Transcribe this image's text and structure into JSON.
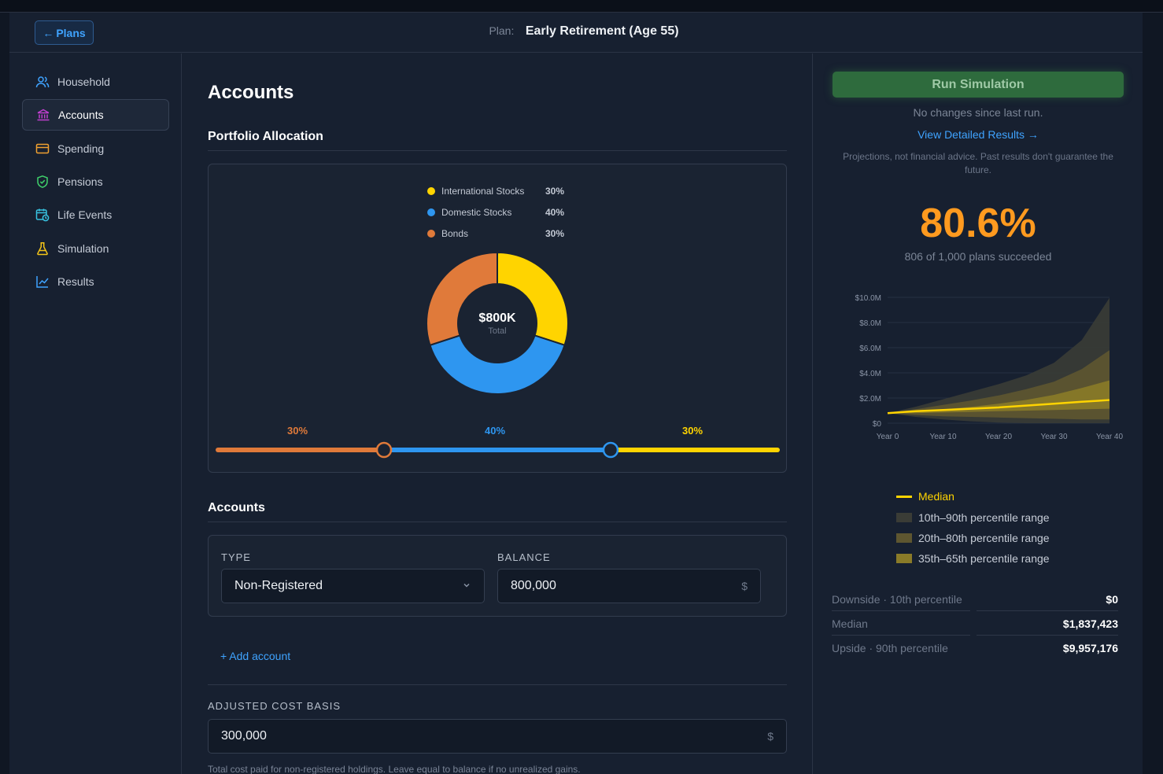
{
  "header": {
    "back_label": "Plans",
    "plan_label": "Plan:",
    "plan_name": "Early Retirement (Age 55)"
  },
  "sidebar": {
    "items": [
      {
        "label": "Household",
        "icon": "users-icon",
        "color": "#3fa3ff",
        "active": false
      },
      {
        "label": "Accounts",
        "icon": "bank-icon",
        "color": "#c23fd1",
        "active": true
      },
      {
        "label": "Spending",
        "icon": "credit-card-icon",
        "color": "#f0a030",
        "active": false
      },
      {
        "label": "Pensions",
        "icon": "shield-check-icon",
        "color": "#3fcf6a",
        "active": false
      },
      {
        "label": "Life Events",
        "icon": "calendar-clock-icon",
        "color": "#38c2e0",
        "active": false
      },
      {
        "label": "Simulation",
        "icon": "flask-icon",
        "color": "#f5c518",
        "active": false
      },
      {
        "label": "Results",
        "icon": "line-chart-icon",
        "color": "#3fa3ff",
        "active": false
      }
    ]
  },
  "main": {
    "title": "Accounts",
    "allocation_title": "Portfolio Allocation",
    "allocation": [
      {
        "name": "International Stocks",
        "pct": "30%",
        "color": "#ffd400"
      },
      {
        "name": "Domestic Stocks",
        "pct": "40%",
        "color": "#2e96f0"
      },
      {
        "name": "Bonds",
        "pct": "30%",
        "color": "#e07a3a"
      }
    ],
    "donut_total": "$800K",
    "donut_total_label": "Total",
    "slider": {
      "labels": [
        "30%",
        "40%",
        "30%"
      ],
      "colors": [
        "#e07a3a",
        "#2e96f0",
        "#ffd400"
      ]
    },
    "accounts_title": "Accounts",
    "account": {
      "type_label": "TYPE",
      "type_value": "Non-Registered",
      "balance_label": "BALANCE",
      "balance_value": "800,000",
      "currency": "$"
    },
    "add_account": "+ Add account",
    "cost_basis_label": "ADJUSTED COST BASIS",
    "cost_basis_value": "300,000",
    "cost_basis_currency": "$",
    "helper": "Total cost paid for non-registered holdings. Leave equal to balance if no unrealized gains."
  },
  "results": {
    "run_button": "Run Simulation",
    "no_changes": "No changes since last run.",
    "view_results": "View Detailed Results →",
    "disclaimer": "Projections, not financial advice. Past results don't guarantee the future.",
    "success_rate": "80.6%",
    "success_sub": "806 of 1,000 plans succeeded",
    "legend": [
      {
        "label": "Median",
        "color": "#ffd400"
      },
      {
        "label": "10th–90th percentile range",
        "color": "#3a3c36"
      },
      {
        "label": "20th–80th percentile range",
        "color": "#5e5630"
      },
      {
        "label": "35th–65th percentile range",
        "color": "#8a7b28"
      }
    ],
    "stats": [
      {
        "label": "Downside · 10th percentile",
        "value": "$0"
      },
      {
        "label": "Median",
        "value": "$1,837,423"
      },
      {
        "label": "Upside · 90th percentile",
        "value": "$9,957,176"
      }
    ]
  },
  "chart_data": {
    "type": "area",
    "x": [
      0,
      5,
      10,
      15,
      20,
      25,
      30,
      35,
      40
    ],
    "x_tick_labels": [
      "Year 0",
      "Year 10",
      "Year 20",
      "Year 30",
      "Year 40"
    ],
    "x_ticks": [
      0,
      10,
      20,
      30,
      40
    ],
    "y_tick_labels": [
      "$0",
      "$2.0M",
      "$4.0M",
      "$6.0M",
      "$8.0M",
      "$10.0M"
    ],
    "y_ticks": [
      0,
      2,
      4,
      6,
      8,
      10
    ],
    "ylim": [
      0,
      10
    ],
    "y_unit": "millions",
    "bands": [
      {
        "name": "10th–90th percentile range",
        "color": "#3a3c36",
        "lower": [
          0.8,
          0.5,
          0.3,
          0.15,
          0.05,
          0,
          0,
          0,
          0
        ],
        "upper": [
          0.8,
          1.3,
          1.9,
          2.5,
          3.1,
          3.8,
          4.8,
          6.6,
          9.96
        ]
      },
      {
        "name": "20th–80th percentile range",
        "color": "#5e5630",
        "lower": [
          0.8,
          0.65,
          0.55,
          0.5,
          0.45,
          0.4,
          0.35,
          0.3,
          0.3
        ],
        "upper": [
          0.8,
          1.1,
          1.45,
          1.8,
          2.2,
          2.7,
          3.3,
          4.3,
          5.8
        ]
      },
      {
        "name": "35th–65th percentile range",
        "color": "#8a7b28",
        "lower": [
          0.8,
          0.8,
          0.85,
          0.9,
          0.95,
          1.0,
          1.05,
          1.1,
          1.15
        ],
        "upper": [
          0.8,
          0.95,
          1.1,
          1.3,
          1.55,
          1.85,
          2.25,
          2.8,
          3.4
        ]
      }
    ],
    "series": [
      {
        "name": "Median",
        "color": "#ffd400",
        "values": [
          0.8,
          0.95,
          1.05,
          1.15,
          1.25,
          1.4,
          1.55,
          1.7,
          1.84
        ]
      }
    ],
    "grid": true
  }
}
